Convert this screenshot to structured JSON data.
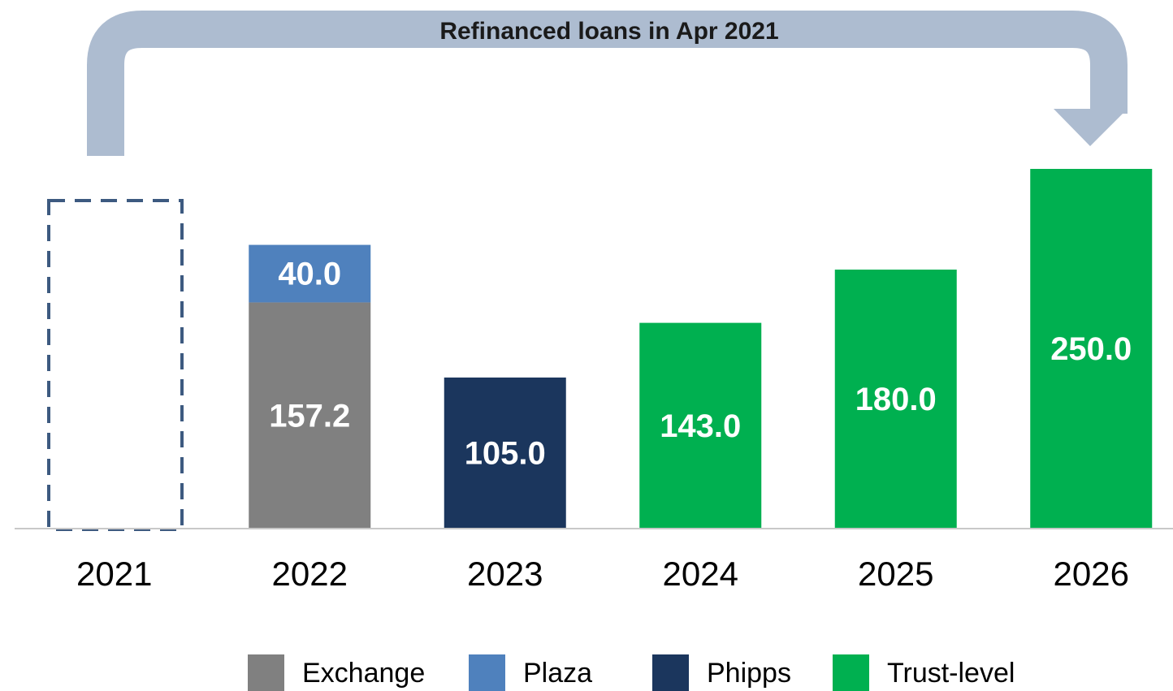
{
  "chart_data": {
    "type": "bar",
    "stacked": true,
    "annotation": "Refinanced loans in Apr 2021",
    "categories": [
      "2021",
      "2022",
      "2023",
      "2024",
      "2025",
      "2026"
    ],
    "series": [
      {
        "name": "Exchange",
        "color": "#808080",
        "values": [
          null,
          157.2,
          null,
          null,
          null,
          null
        ],
        "value_labels": [
          null,
          "157.2",
          null,
          null,
          null,
          null
        ]
      },
      {
        "name": "Plaza",
        "color": "#4f81bd",
        "values": [
          null,
          40,
          null,
          null,
          null,
          null
        ],
        "value_labels": [
          null,
          "40.0",
          null,
          null,
          null,
          null
        ]
      },
      {
        "name": "Phipps",
        "color": "#1b365d",
        "values": [
          null,
          null,
          105,
          null,
          null,
          null
        ],
        "value_labels": [
          null,
          null,
          "105.0",
          null,
          null,
          null
        ]
      },
      {
        "name": "Trust-level",
        "color": "#00b050",
        "values": [
          null,
          null,
          null,
          143,
          180,
          250
        ],
        "value_labels": [
          null,
          null,
          null,
          "143.0",
          "180.0",
          "250.0"
        ]
      }
    ],
    "ylim": [
      0,
      250
    ],
    "legend": "bottom"
  }
}
